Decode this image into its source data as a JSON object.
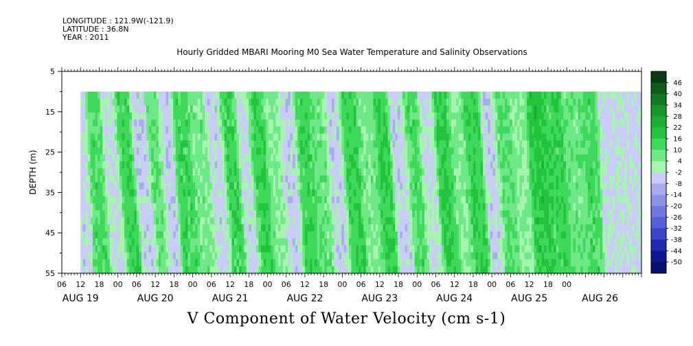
{
  "header": {
    "longitude": "LONGITUDE : 121.9W(-121.9)",
    "latitude": "LATITUDE : 36.8N",
    "year": "YEAR : 2011"
  },
  "chart_title": "Hourly Gridded MBARI Mooring M0 Sea Water Temperature and Salinity Observations",
  "footer_title": "V Component of Water Velocity (cm s-1)",
  "chart_data": {
    "type": "heatmap",
    "variable": "V Component of Water Velocity",
    "units": "cm s-1",
    "ylabel": "DEPTH (m)",
    "ylim": [
      5,
      55
    ],
    "y_inverted": true,
    "y_ticks": [
      5,
      15,
      25,
      35,
      45,
      55
    ],
    "data_depth_range": [
      10,
      55
    ],
    "x_hour_ticks": [
      "06",
      "12",
      "18",
      "00",
      "06",
      "12",
      "18",
      "00",
      "06",
      "12",
      "18",
      "00",
      "06",
      "12",
      "18",
      "00",
      "06",
      "12",
      "18",
      "00",
      "06",
      "12",
      "18",
      "00",
      "06",
      "12",
      "18",
      "00"
    ],
    "x_day_labels": [
      "AUG 19",
      "AUG 20",
      "AUG 21",
      "AUG 22",
      "AUG 23",
      "AUG 24",
      "AUG 25",
      "AUG 26"
    ],
    "colorbar": {
      "levels": [
        "46",
        "40",
        "34",
        "28",
        "22",
        "16",
        "10",
        "4",
        "-2",
        "-8",
        "-14",
        "-20",
        "-26",
        "-32",
        "-38",
        "-44",
        "-50"
      ],
      "colors": [
        "#0a3a12",
        "#0e5a1a",
        "#117a22",
        "#15962b",
        "#1aae33",
        "#22c43d",
        "#3fd85a",
        "#6fe886",
        "#a6f4b0",
        "#c8ccf6",
        "#a8acef",
        "#8c92e8",
        "#6f78e0",
        "#5560d8",
        "#3a46c8",
        "#1e2ab0",
        "#0d1890",
        "#06106a"
      ]
    },
    "bands": [
      {
        "day": 19.0,
        "v": -4,
        "tilt": 0.5
      },
      {
        "day": 19.15,
        "v": 12,
        "tilt": 1.2
      },
      {
        "day": 19.35,
        "v": -3,
        "tilt": 1.5
      },
      {
        "day": 19.55,
        "v": 14,
        "tilt": 1.4
      },
      {
        "day": 19.75,
        "v": -5,
        "tilt": 1.6
      },
      {
        "day": 19.95,
        "v": 10,
        "tilt": 1.5
      },
      {
        "day": 20.1,
        "v": -6,
        "tilt": 1.2
      },
      {
        "day": 20.3,
        "v": 13,
        "tilt": 1.5
      },
      {
        "day": 20.55,
        "v": 6,
        "tilt": 1.4
      },
      {
        "day": 20.75,
        "v": -4,
        "tilt": 1.6
      },
      {
        "day": 20.95,
        "v": 14,
        "tilt": 1.5
      },
      {
        "day": 21.15,
        "v": -4,
        "tilt": 1.5
      },
      {
        "day": 21.3,
        "v": 15,
        "tilt": 1.6
      },
      {
        "day": 21.55,
        "v": 5,
        "tilt": 1.3
      },
      {
        "day": 21.75,
        "v": -5,
        "tilt": 1.0
      },
      {
        "day": 21.95,
        "v": 14,
        "tilt": 1.4
      },
      {
        "day": 22.15,
        "v": 8,
        "tilt": 1.2
      },
      {
        "day": 22.35,
        "v": -5,
        "tilt": 1.5
      },
      {
        "day": 22.55,
        "v": 15,
        "tilt": 1.4
      },
      {
        "day": 22.8,
        "v": 6,
        "tilt": 1.3
      },
      {
        "day": 23.0,
        "v": 16,
        "tilt": 1.2
      },
      {
        "day": 23.2,
        "v": -5,
        "tilt": 1.5
      },
      {
        "day": 23.4,
        "v": 12,
        "tilt": 1.4
      },
      {
        "day": 23.6,
        "v": -3,
        "tilt": 1.2
      },
      {
        "day": 23.8,
        "v": 16,
        "tilt": 1.5
      },
      {
        "day": 24.0,
        "v": 5,
        "tilt": 1.4
      },
      {
        "day": 24.2,
        "v": 15,
        "tilt": 1.5
      },
      {
        "day": 24.45,
        "v": -5,
        "tilt": 1.2
      },
      {
        "day": 24.6,
        "v": 10,
        "tilt": 1.3
      },
      {
        "day": 24.85,
        "v": 4,
        "tilt": 1.1
      },
      {
        "day": 25.05,
        "v": 18,
        "tilt": 1.2
      },
      {
        "day": 25.3,
        "v": 14,
        "tilt": 1.3
      },
      {
        "day": 25.55,
        "v": 8,
        "tilt": 1.2
      },
      {
        "day": 25.8,
        "v": 12,
        "tilt": 1.0
      },
      {
        "day": 26.0,
        "v": -3,
        "tilt": 0.8
      }
    ]
  }
}
